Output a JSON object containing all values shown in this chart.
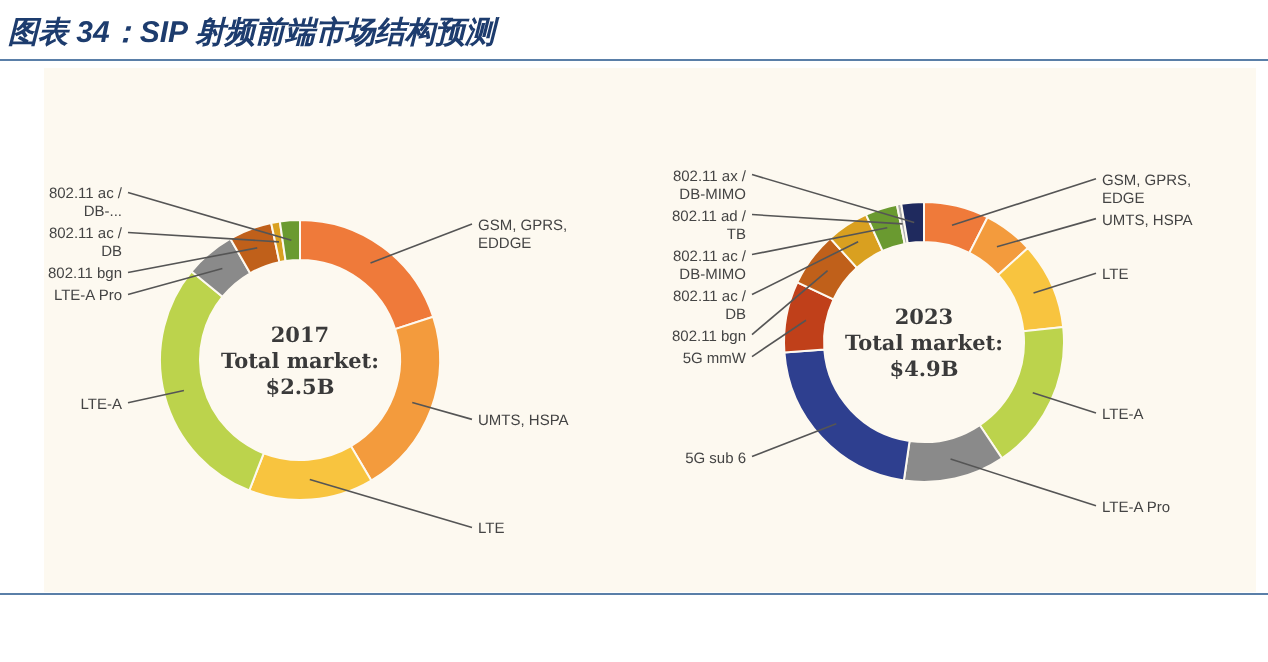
{
  "chart_data": [
    {
      "type": "donut",
      "title": "图表 34：SIP 射频前端市场结构预测",
      "annotations": [
        "2017",
        "Total market:",
        "$2.5B"
      ],
      "categories": [
        "GSM, GPRS, EDDGE",
        "UMTS, HSPA",
        "LTE",
        "LTE-A",
        "LTE-A Pro",
        "802.11 bgn",
        "802.11 ac / DB",
        "802.11 ac / DB-..."
      ],
      "values": [
        20,
        21.5,
        14.4,
        30,
        5.8,
        5,
        1,
        2.3
      ],
      "colors": [
        "#ef7a3a",
        "#f39b3d",
        "#f8c43f",
        "#bcd34c",
        "#8a8a8a",
        "#c0601a",
        "#d9a020",
        "#6a9a30"
      ]
    },
    {
      "type": "donut",
      "annotations": [
        "2023",
        "Total market:",
        "$4.9B"
      ],
      "categories": [
        "GSM, GPRS, EDGE",
        "UMTS, HSPA",
        "LTE",
        "LTE-A",
        "LTE-A Pro",
        "5G sub 6",
        "5G mmW",
        "802.11 bgn",
        "802.11 ac / DB",
        "802.11 ac / DB-MIMO",
        "802.11 ad / TB",
        "802.11 ax / DB-MIMO"
      ],
      "values": [
        7.5,
        5.8,
        10,
        17.3,
        11.7,
        21.5,
        8.2,
        6.3,
        4.9,
        3.7,
        0.5,
        2.6
      ],
      "colors": [
        "#ef7a3a",
        "#f39b3d",
        "#f8c43f",
        "#bcd34c",
        "#8a8a8a",
        "#2e3f8f",
        "#c0401a",
        "#c0601a",
        "#d9a020",
        "#6a9a30",
        "#b0b0b0",
        "#1f2a5e"
      ]
    }
  ]
}
